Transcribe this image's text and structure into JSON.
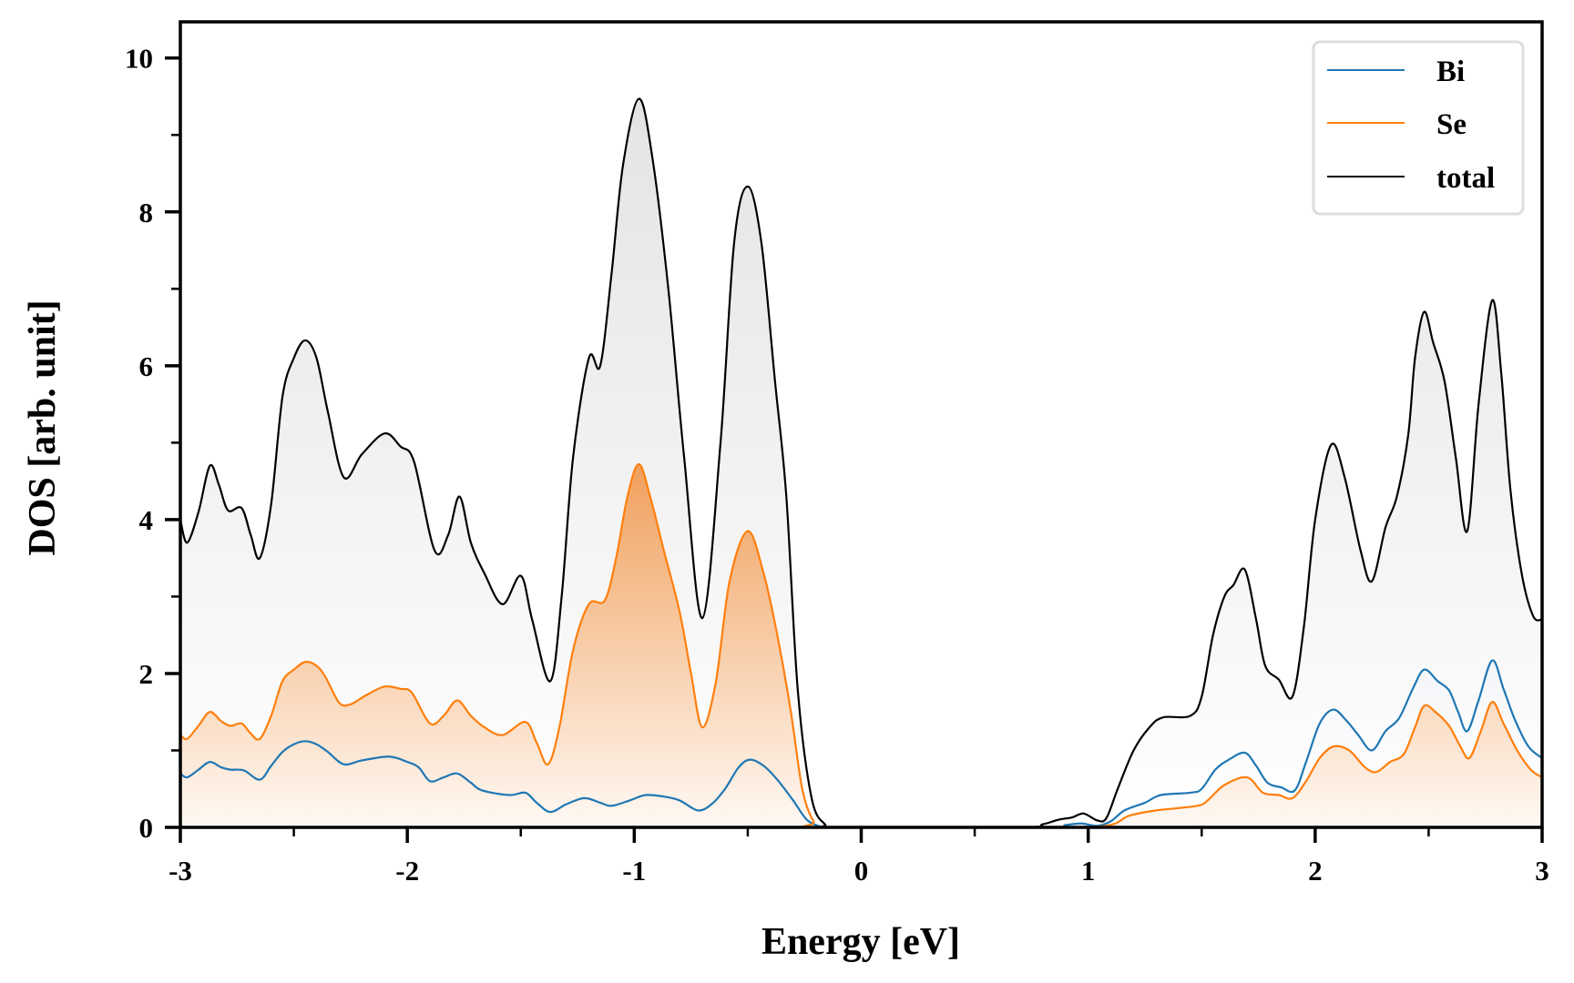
{
  "chart_data": {
    "type": "area",
    "title": "",
    "xlabel": "Energy [eV]",
    "ylabel": "DOS [arb. unit]",
    "xlim": [
      -3,
      3
    ],
    "ylim": [
      0,
      10.47
    ],
    "xticks": [
      -3,
      -2,
      -1,
      0,
      1,
      2,
      3
    ],
    "xtick_labels": [
      "-3",
      "-2",
      "-1",
      "0",
      "1",
      "2",
      "3"
    ],
    "xminor": [
      -2.5,
      -1.5,
      -0.5,
      0.5,
      1.5,
      2.5
    ],
    "yticks": [
      0,
      2,
      4,
      6,
      8,
      10
    ],
    "ytick_labels": [
      "0",
      "2",
      "4",
      "6",
      "8",
      "10"
    ],
    "yminor": [
      1,
      3,
      5,
      7,
      9
    ],
    "grid": false,
    "legend": {
      "position": "top-right",
      "entries": [
        "Bi",
        "Se",
        "total"
      ]
    },
    "series": [
      {
        "name": "total",
        "color": "#000000",
        "fill": "gray-gradient",
        "points": [
          [
            -3.0,
            4.0
          ],
          [
            -2.97,
            3.7
          ],
          [
            -2.92,
            4.1
          ],
          [
            -2.87,
            4.7
          ],
          [
            -2.83,
            4.45
          ],
          [
            -2.79,
            4.12
          ],
          [
            -2.73,
            4.15
          ],
          [
            -2.69,
            3.8
          ],
          [
            -2.65,
            3.5
          ],
          [
            -2.6,
            4.2
          ],
          [
            -2.55,
            5.6
          ],
          [
            -2.5,
            6.1
          ],
          [
            -2.45,
            6.33
          ],
          [
            -2.4,
            6.1
          ],
          [
            -2.35,
            5.4
          ],
          [
            -2.28,
            4.55
          ],
          [
            -2.2,
            4.85
          ],
          [
            -2.1,
            5.12
          ],
          [
            -2.03,
            4.95
          ],
          [
            -1.97,
            4.75
          ],
          [
            -1.88,
            3.6
          ],
          [
            -1.82,
            3.8
          ],
          [
            -1.77,
            4.3
          ],
          [
            -1.72,
            3.7
          ],
          [
            -1.66,
            3.3
          ],
          [
            -1.58,
            2.9
          ],
          [
            -1.5,
            3.27
          ],
          [
            -1.45,
            2.7
          ],
          [
            -1.37,
            1.9
          ],
          [
            -1.32,
            3.0
          ],
          [
            -1.27,
            4.8
          ],
          [
            -1.2,
            6.1
          ],
          [
            -1.15,
            6.0
          ],
          [
            -1.1,
            7.2
          ],
          [
            -1.05,
            8.6
          ],
          [
            -0.98,
            9.47
          ],
          [
            -0.92,
            8.7
          ],
          [
            -0.85,
            7.0
          ],
          [
            -0.78,
            4.8
          ],
          [
            -0.7,
            2.72
          ],
          [
            -0.62,
            5.0
          ],
          [
            -0.56,
            7.6
          ],
          [
            -0.5,
            8.33
          ],
          [
            -0.44,
            7.6
          ],
          [
            -0.38,
            5.8
          ],
          [
            -0.33,
            4.3
          ],
          [
            -0.28,
            1.8
          ],
          [
            -0.22,
            0.4
          ],
          [
            -0.16,
            0.04
          ],
          [
            -0.1,
            0.0
          ],
          [
            0.7,
            0.0
          ],
          [
            0.8,
            0.04
          ],
          [
            0.87,
            0.1
          ],
          [
            0.93,
            0.13
          ],
          [
            0.98,
            0.18
          ],
          [
            1.04,
            0.09
          ],
          [
            1.08,
            0.12
          ],
          [
            1.13,
            0.5
          ],
          [
            1.2,
            1.0
          ],
          [
            1.27,
            1.3
          ],
          [
            1.33,
            1.43
          ],
          [
            1.45,
            1.45
          ],
          [
            1.5,
            1.7
          ],
          [
            1.55,
            2.5
          ],
          [
            1.6,
            3.0
          ],
          [
            1.64,
            3.15
          ],
          [
            1.69,
            3.35
          ],
          [
            1.74,
            2.7
          ],
          [
            1.78,
            2.1
          ],
          [
            1.84,
            1.92
          ],
          [
            1.9,
            1.7
          ],
          [
            1.95,
            2.6
          ],
          [
            2.0,
            4.0
          ],
          [
            2.07,
            4.97
          ],
          [
            2.13,
            4.55
          ],
          [
            2.2,
            3.6
          ],
          [
            2.25,
            3.2
          ],
          [
            2.31,
            3.9
          ],
          [
            2.36,
            4.3
          ],
          [
            2.41,
            5.1
          ],
          [
            2.44,
            6.1
          ],
          [
            2.48,
            6.7
          ],
          [
            2.52,
            6.3
          ],
          [
            2.57,
            5.8
          ],
          [
            2.62,
            4.8
          ],
          [
            2.67,
            3.85
          ],
          [
            2.72,
            5.5
          ],
          [
            2.78,
            6.85
          ],
          [
            2.82,
            5.9
          ],
          [
            2.86,
            4.4
          ],
          [
            2.91,
            3.3
          ],
          [
            2.96,
            2.75
          ],
          [
            3.0,
            2.7
          ]
        ]
      },
      {
        "name": "Se",
        "color": "#ff7f0e",
        "fill": "orange-gradient",
        "points": [
          [
            -3.0,
            1.2
          ],
          [
            -2.97,
            1.15
          ],
          [
            -2.92,
            1.32
          ],
          [
            -2.87,
            1.5
          ],
          [
            -2.82,
            1.38
          ],
          [
            -2.78,
            1.32
          ],
          [
            -2.73,
            1.35
          ],
          [
            -2.69,
            1.22
          ],
          [
            -2.65,
            1.15
          ],
          [
            -2.6,
            1.45
          ],
          [
            -2.55,
            1.9
          ],
          [
            -2.5,
            2.05
          ],
          [
            -2.45,
            2.15
          ],
          [
            -2.4,
            2.1
          ],
          [
            -2.36,
            1.95
          ],
          [
            -2.3,
            1.62
          ],
          [
            -2.25,
            1.6
          ],
          [
            -2.18,
            1.72
          ],
          [
            -2.1,
            1.83
          ],
          [
            -2.03,
            1.8
          ],
          [
            -1.98,
            1.75
          ],
          [
            -1.9,
            1.35
          ],
          [
            -1.84,
            1.45
          ],
          [
            -1.78,
            1.65
          ],
          [
            -1.72,
            1.45
          ],
          [
            -1.66,
            1.3
          ],
          [
            -1.58,
            1.2
          ],
          [
            -1.48,
            1.37
          ],
          [
            -1.43,
            1.1
          ],
          [
            -1.38,
            0.82
          ],
          [
            -1.33,
            1.3
          ],
          [
            -1.27,
            2.3
          ],
          [
            -1.2,
            2.9
          ],
          [
            -1.13,
            2.95
          ],
          [
            -1.08,
            3.5
          ],
          [
            -1.03,
            4.3
          ],
          [
            -0.98,
            4.72
          ],
          [
            -0.93,
            4.3
          ],
          [
            -0.87,
            3.6
          ],
          [
            -0.8,
            2.8
          ],
          [
            -0.75,
            2.0
          ],
          [
            -0.7,
            1.3
          ],
          [
            -0.64,
            1.9
          ],
          [
            -0.58,
            3.2
          ],
          [
            -0.5,
            3.85
          ],
          [
            -0.43,
            3.3
          ],
          [
            -0.37,
            2.5
          ],
          [
            -0.31,
            1.5
          ],
          [
            -0.26,
            0.5
          ],
          [
            -0.21,
            0.08
          ],
          [
            -0.16,
            0.0
          ],
          [
            0.95,
            0.0
          ],
          [
            1.05,
            0.01
          ],
          [
            1.12,
            0.05
          ],
          [
            1.18,
            0.15
          ],
          [
            1.3,
            0.22
          ],
          [
            1.48,
            0.28
          ],
          [
            1.53,
            0.36
          ],
          [
            1.6,
            0.55
          ],
          [
            1.7,
            0.65
          ],
          [
            1.77,
            0.45
          ],
          [
            1.84,
            0.42
          ],
          [
            1.9,
            0.38
          ],
          [
            1.96,
            0.6
          ],
          [
            2.02,
            0.9
          ],
          [
            2.08,
            1.05
          ],
          [
            2.15,
            1.0
          ],
          [
            2.22,
            0.78
          ],
          [
            2.27,
            0.72
          ],
          [
            2.33,
            0.85
          ],
          [
            2.39,
            0.95
          ],
          [
            2.44,
            1.3
          ],
          [
            2.48,
            1.58
          ],
          [
            2.53,
            1.5
          ],
          [
            2.59,
            1.32
          ],
          [
            2.64,
            1.05
          ],
          [
            2.68,
            0.9
          ],
          [
            2.73,
            1.25
          ],
          [
            2.78,
            1.63
          ],
          [
            2.83,
            1.35
          ],
          [
            2.89,
            1.0
          ],
          [
            2.95,
            0.75
          ],
          [
            3.0,
            0.65
          ]
        ]
      },
      {
        "name": "Bi",
        "color": "#1f77b4",
        "fill": "blue-gradient",
        "points": [
          [
            -3.0,
            0.7
          ],
          [
            -2.97,
            0.65
          ],
          [
            -2.92,
            0.75
          ],
          [
            -2.87,
            0.85
          ],
          [
            -2.82,
            0.78
          ],
          [
            -2.78,
            0.75
          ],
          [
            -2.72,
            0.74
          ],
          [
            -2.65,
            0.62
          ],
          [
            -2.6,
            0.8
          ],
          [
            -2.55,
            0.98
          ],
          [
            -2.5,
            1.08
          ],
          [
            -2.45,
            1.12
          ],
          [
            -2.4,
            1.08
          ],
          [
            -2.35,
            0.98
          ],
          [
            -2.28,
            0.82
          ],
          [
            -2.2,
            0.87
          ],
          [
            -2.08,
            0.92
          ],
          [
            -2.0,
            0.85
          ],
          [
            -1.95,
            0.78
          ],
          [
            -1.9,
            0.6
          ],
          [
            -1.84,
            0.65
          ],
          [
            -1.78,
            0.7
          ],
          [
            -1.72,
            0.58
          ],
          [
            -1.67,
            0.48
          ],
          [
            -1.55,
            0.42
          ],
          [
            -1.48,
            0.45
          ],
          [
            -1.43,
            0.32
          ],
          [
            -1.37,
            0.2
          ],
          [
            -1.3,
            0.3
          ],
          [
            -1.22,
            0.38
          ],
          [
            -1.15,
            0.32
          ],
          [
            -1.1,
            0.28
          ],
          [
            -1.02,
            0.35
          ],
          [
            -0.95,
            0.42
          ],
          [
            -0.87,
            0.4
          ],
          [
            -0.8,
            0.35
          ],
          [
            -0.72,
            0.22
          ],
          [
            -0.66,
            0.3
          ],
          [
            -0.6,
            0.5
          ],
          [
            -0.54,
            0.78
          ],
          [
            -0.49,
            0.88
          ],
          [
            -0.43,
            0.8
          ],
          [
            -0.37,
            0.62
          ],
          [
            -0.3,
            0.35
          ],
          [
            -0.24,
            0.1
          ],
          [
            -0.18,
            0.01
          ],
          [
            -0.14,
            0.0
          ],
          [
            0.8,
            0.0
          ],
          [
            0.9,
            0.03
          ],
          [
            0.97,
            0.05
          ],
          [
            1.04,
            0.02
          ],
          [
            1.1,
            0.08
          ],
          [
            1.16,
            0.22
          ],
          [
            1.25,
            0.32
          ],
          [
            1.32,
            0.42
          ],
          [
            1.45,
            0.45
          ],
          [
            1.5,
            0.5
          ],
          [
            1.56,
            0.75
          ],
          [
            1.62,
            0.88
          ],
          [
            1.69,
            0.97
          ],
          [
            1.74,
            0.8
          ],
          [
            1.79,
            0.58
          ],
          [
            1.85,
            0.52
          ],
          [
            1.91,
            0.48
          ],
          [
            1.96,
            0.85
          ],
          [
            2.02,
            1.35
          ],
          [
            2.08,
            1.53
          ],
          [
            2.14,
            1.38
          ],
          [
            2.19,
            1.2
          ],
          [
            2.25,
            1.0
          ],
          [
            2.31,
            1.25
          ],
          [
            2.37,
            1.42
          ],
          [
            2.43,
            1.8
          ],
          [
            2.48,
            2.05
          ],
          [
            2.54,
            1.9
          ],
          [
            2.59,
            1.78
          ],
          [
            2.63,
            1.5
          ],
          [
            2.67,
            1.25
          ],
          [
            2.72,
            1.65
          ],
          [
            2.78,
            2.17
          ],
          [
            2.83,
            1.8
          ],
          [
            2.88,
            1.4
          ],
          [
            2.94,
            1.05
          ],
          [
            3.0,
            0.9
          ]
        ]
      }
    ]
  }
}
